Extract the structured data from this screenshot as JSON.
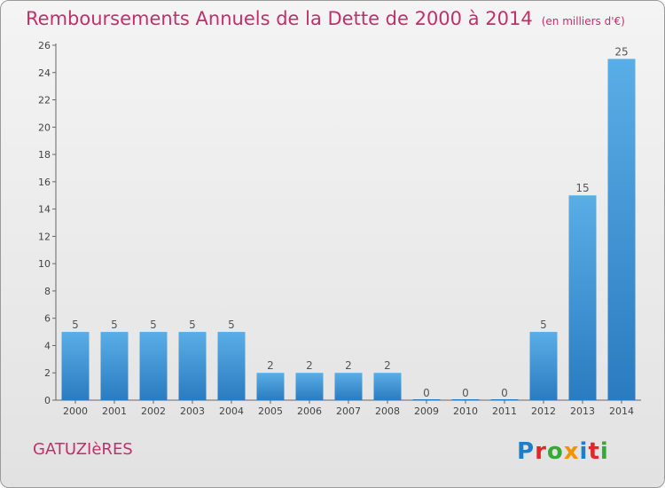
{
  "header": {
    "title": "Remboursements Annuels de la Dette de 2000 à 2014",
    "unit": "(en milliers d'€)"
  },
  "footer": {
    "commune": "GATUZIèRES",
    "brand": "Proxiti"
  },
  "colors": {
    "title": "#c0306a",
    "bar_light": "#5aaee6",
    "bar_dark": "#2a7bc0",
    "logo_p": "#1e7fc6",
    "logo_r": "#e2262a",
    "logo_o": "#37a935",
    "logo_x": "#f29400",
    "logo_i": "#1e7fc6",
    "logo_t": "#e2262a",
    "logo_i2": "#37a935"
  },
  "chart_data": {
    "type": "bar",
    "title": "Remboursements Annuels de la Dette de 2000 à 2014",
    "subtitle": "(en milliers d'€)",
    "categories": [
      "2000",
      "2001",
      "2002",
      "2003",
      "2004",
      "2005",
      "2006",
      "2007",
      "2008",
      "2009",
      "2010",
      "2011",
      "2012",
      "2013",
      "2014"
    ],
    "values": [
      5,
      5,
      5,
      5,
      5,
      2,
      2,
      2,
      2,
      0,
      0,
      0,
      5,
      15,
      25
    ],
    "ylim": [
      0,
      26
    ],
    "yticks": [
      0,
      2,
      4,
      6,
      8,
      10,
      12,
      14,
      16,
      18,
      20,
      22,
      24,
      26
    ],
    "grid": false,
    "data_labels": true
  }
}
